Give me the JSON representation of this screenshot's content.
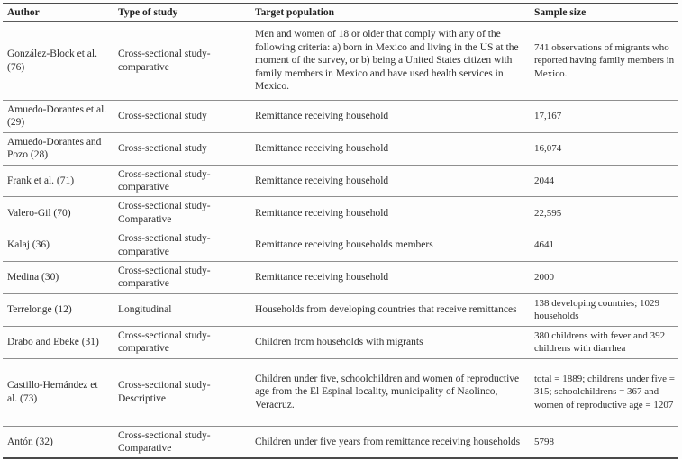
{
  "table": {
    "columns": [
      {
        "label": "Author"
      },
      {
        "label": "Type of study"
      },
      {
        "label": "Target population"
      },
      {
        "label": "Sample size"
      }
    ],
    "rows": [
      {
        "author": "González-Block et al. (76)",
        "type": "Cross-sectional study-comparative",
        "population": "Men and women of 18 or older that comply with any of the following criteria: a) born in Mexico and living in the US at the moment of the survey, or b) being a United States citizen with family members in Mexico and have used health services in Mexico.",
        "sample": "741 observations of migrants who reported having family members in Mexico."
      },
      {
        "author": "Amuedo-Dorantes et al. (29)",
        "type": "Cross-sectional study",
        "population": "Remittance receiving household",
        "sample": "17,167"
      },
      {
        "author": "Amuedo-Dorantes and Pozo (28)",
        "type": "Cross-sectional study",
        "population": "Remittance receiving household",
        "sample": "16,074"
      },
      {
        "author": "Frank et al. (71)",
        "type": "Cross-sectional study-comparative",
        "population": "Remittance receiving household",
        "sample": "2044"
      },
      {
        "author": "Valero-Gil (70)",
        "type": "Cross-sectional study-Comparative",
        "population": "Remittance receiving household",
        "sample": "22,595"
      },
      {
        "author": "Kalaj (36)",
        "type": "Cross-sectional study-comparative",
        "population": "Remittance receiving households members",
        "sample": "4641"
      },
      {
        "author": "Medina (30)",
        "type": "Cross-sectional study-comparative",
        "population": "Remittance receiving household",
        "sample": "2000"
      },
      {
        "author": "Terrelonge (12)",
        "type": "Longitudinal",
        "population": "Households from developing countries that receive remittances",
        "sample": "138 developing countries; 1029 households"
      },
      {
        "author": "Drabo and Ebeke (31)",
        "type": "Cross-sectional study-comparative",
        "population": "Children from households with migrants",
        "sample": "380 childrens with fever and 392 childrens with diarrhea"
      },
      {
        "author": "Castillo-Hernández et al. (73)",
        "type": "Cross-sectional study-Descriptive",
        "population": "Children under five, schoolchildren and women of reproductive age from the El Espinal locality, municipality of Naolinco, Veracruz.",
        "sample": "total = 1889; childrens under five = 315; schoolchildrens = 367 and women of reproductive age = 1207"
      },
      {
        "author": "Antón (32)",
        "type": "Cross-sectional study-Comparative",
        "population": "Children under five years from remittance receiving households",
        "sample": "5798"
      }
    ]
  }
}
